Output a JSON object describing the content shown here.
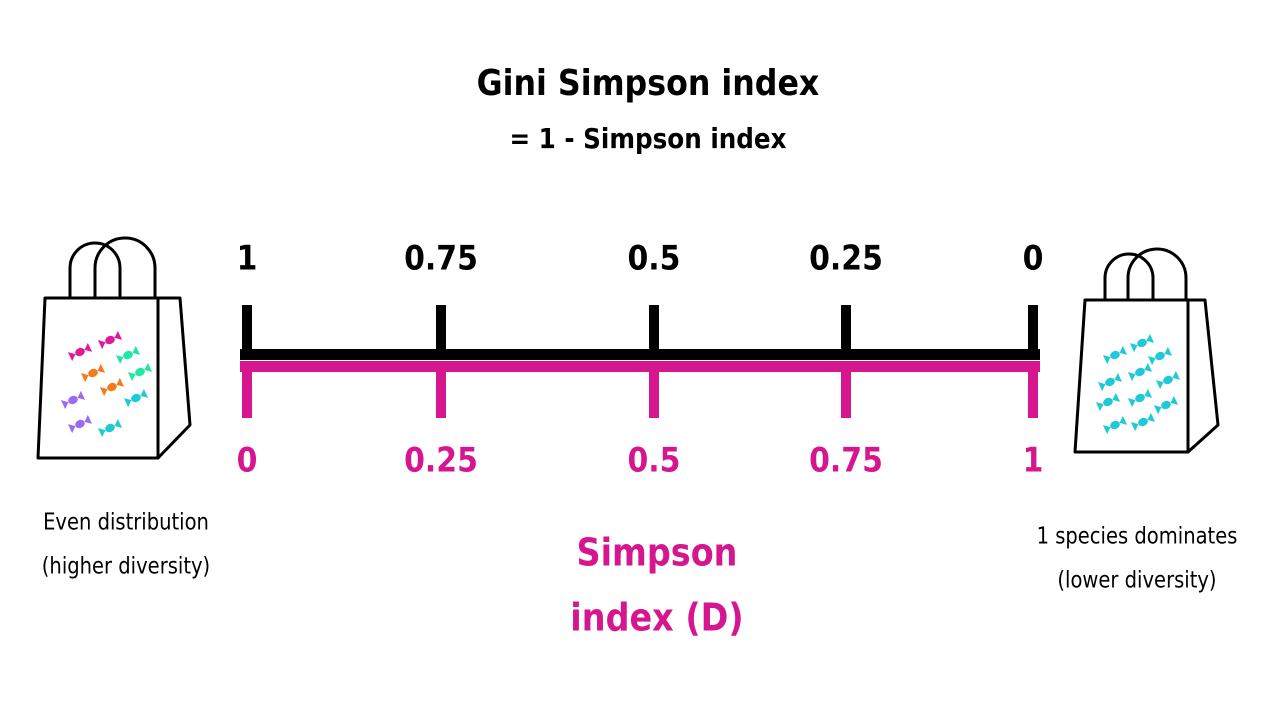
{
  "title": "Gini Simpson index",
  "subtitle": "= 1 - Simpson index",
  "top_scale": {
    "labels": [
      "1",
      "0.75",
      "0.5",
      "0.25",
      "0"
    ]
  },
  "bottom_scale": {
    "labels": [
      "0",
      "0.25",
      "0.5",
      "0.75",
      "1"
    ],
    "name": [
      "Simpson",
      "index (D)"
    ]
  },
  "left_caption": [
    "Even distribution",
    "(higher diversity)"
  ],
  "right_caption": [
    "1 species dominates",
    "(lower diversity)"
  ]
}
